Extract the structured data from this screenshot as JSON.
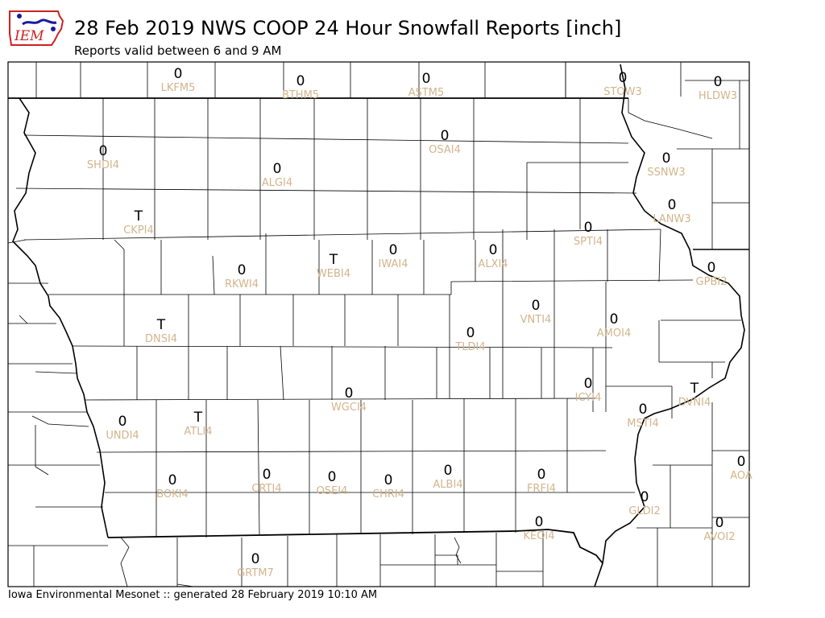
{
  "header": {
    "title": "28 Feb 2019 NWS COOP 24 Hour Snowfall Reports [inch]",
    "subtitle": "Reports valid between 6 and 9 AM",
    "logo_text": "IEM"
  },
  "footer": {
    "text": "Iowa Environmental Mesonet :: generated 28 February 2019 10:10 AM"
  },
  "colors": {
    "station_label": "#d2b48c",
    "value_text": "#000000",
    "logo_red": "#cc2222",
    "logo_blue": "#1a1aa0",
    "county_lines": "#000000"
  },
  "stations": [
    {
      "id": "LKFM5",
      "value": "0"
    },
    {
      "id": "BTHM5",
      "value": "0"
    },
    {
      "id": "ASTM5",
      "value": "0"
    },
    {
      "id": "STOW3",
      "value": "0"
    },
    {
      "id": "HLDW3",
      "value": "0"
    },
    {
      "id": "SHDI4",
      "value": "0"
    },
    {
      "id": "ALGI4",
      "value": "0"
    },
    {
      "id": "OSAI4",
      "value": "0"
    },
    {
      "id": "SSNW3",
      "value": "0"
    },
    {
      "id": "LANW3",
      "value": "0"
    },
    {
      "id": "CKPI4",
      "value": "T"
    },
    {
      "id": "SPTI4",
      "value": "0"
    },
    {
      "id": "RKWI4",
      "value": "0"
    },
    {
      "id": "WEBI4",
      "value": "T"
    },
    {
      "id": "IWAI4",
      "value": "0"
    },
    {
      "id": "ALXI4",
      "value": "0"
    },
    {
      "id": "GPBI2",
      "value": "0"
    },
    {
      "id": "VNTI4",
      "value": "0"
    },
    {
      "id": "DNSI4",
      "value": "T"
    },
    {
      "id": "AMOI4",
      "value": "0"
    },
    {
      "id": "TLDI4",
      "value": "0"
    },
    {
      "id": "ICYI4",
      "value": "0"
    },
    {
      "id": "DVNI4",
      "value": "T"
    },
    {
      "id": "WGCI4",
      "value": "0"
    },
    {
      "id": "UNDI4",
      "value": "0"
    },
    {
      "id": "ATLI4",
      "value": "T"
    },
    {
      "id": "MSTI4",
      "value": "0"
    },
    {
      "id": "AOA",
      "value": "0"
    },
    {
      "id": "BOKI4",
      "value": "0"
    },
    {
      "id": "CRTI4",
      "value": "0"
    },
    {
      "id": "OSEI4",
      "value": "0"
    },
    {
      "id": "CHRI4",
      "value": "0"
    },
    {
      "id": "ALBI4",
      "value": "0"
    },
    {
      "id": "FRFI4",
      "value": "0"
    },
    {
      "id": "GLDI2",
      "value": "0"
    },
    {
      "id": "KEOI4",
      "value": "0"
    },
    {
      "id": "AVOI2",
      "value": "0"
    },
    {
      "id": "GRTM7",
      "value": "0"
    }
  ]
}
